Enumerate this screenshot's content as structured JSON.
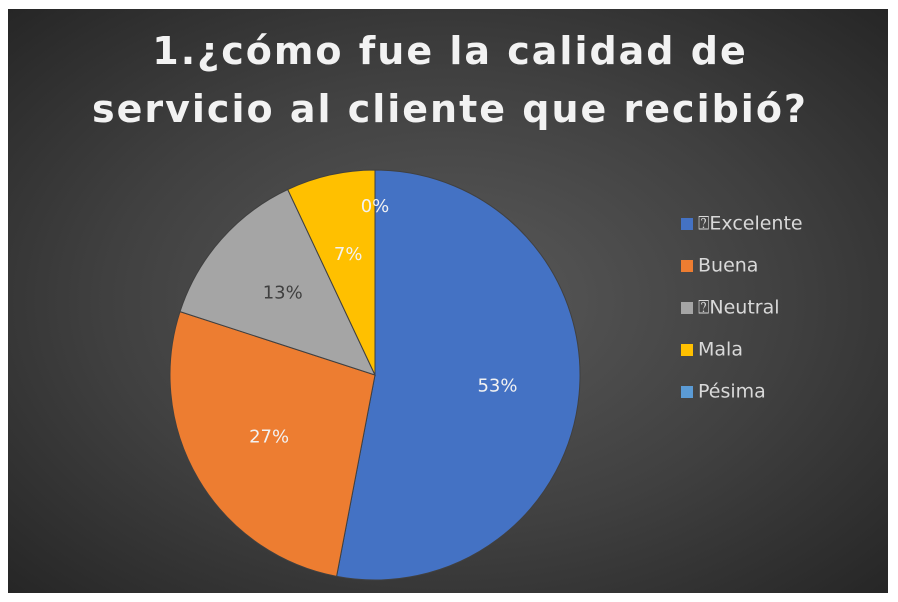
{
  "chart_data": {
    "type": "pie",
    "title": "1.¿cómo fue la calidad de servicio al cliente que recibió?",
    "categories": [
      "⍰Excelente",
      "Buena",
      "⍰Neutral",
      "Mala",
      "Pésima"
    ],
    "values": [
      53,
      27,
      13,
      7,
      0
    ],
    "value_labels": [
      "53%",
      "27%",
      "13%",
      "7%",
      "0%"
    ],
    "colors": [
      "#4472c4",
      "#ed7d31",
      "#a5a5a5",
      "#ffc000",
      "#5b9bd5"
    ],
    "legend": "right"
  }
}
